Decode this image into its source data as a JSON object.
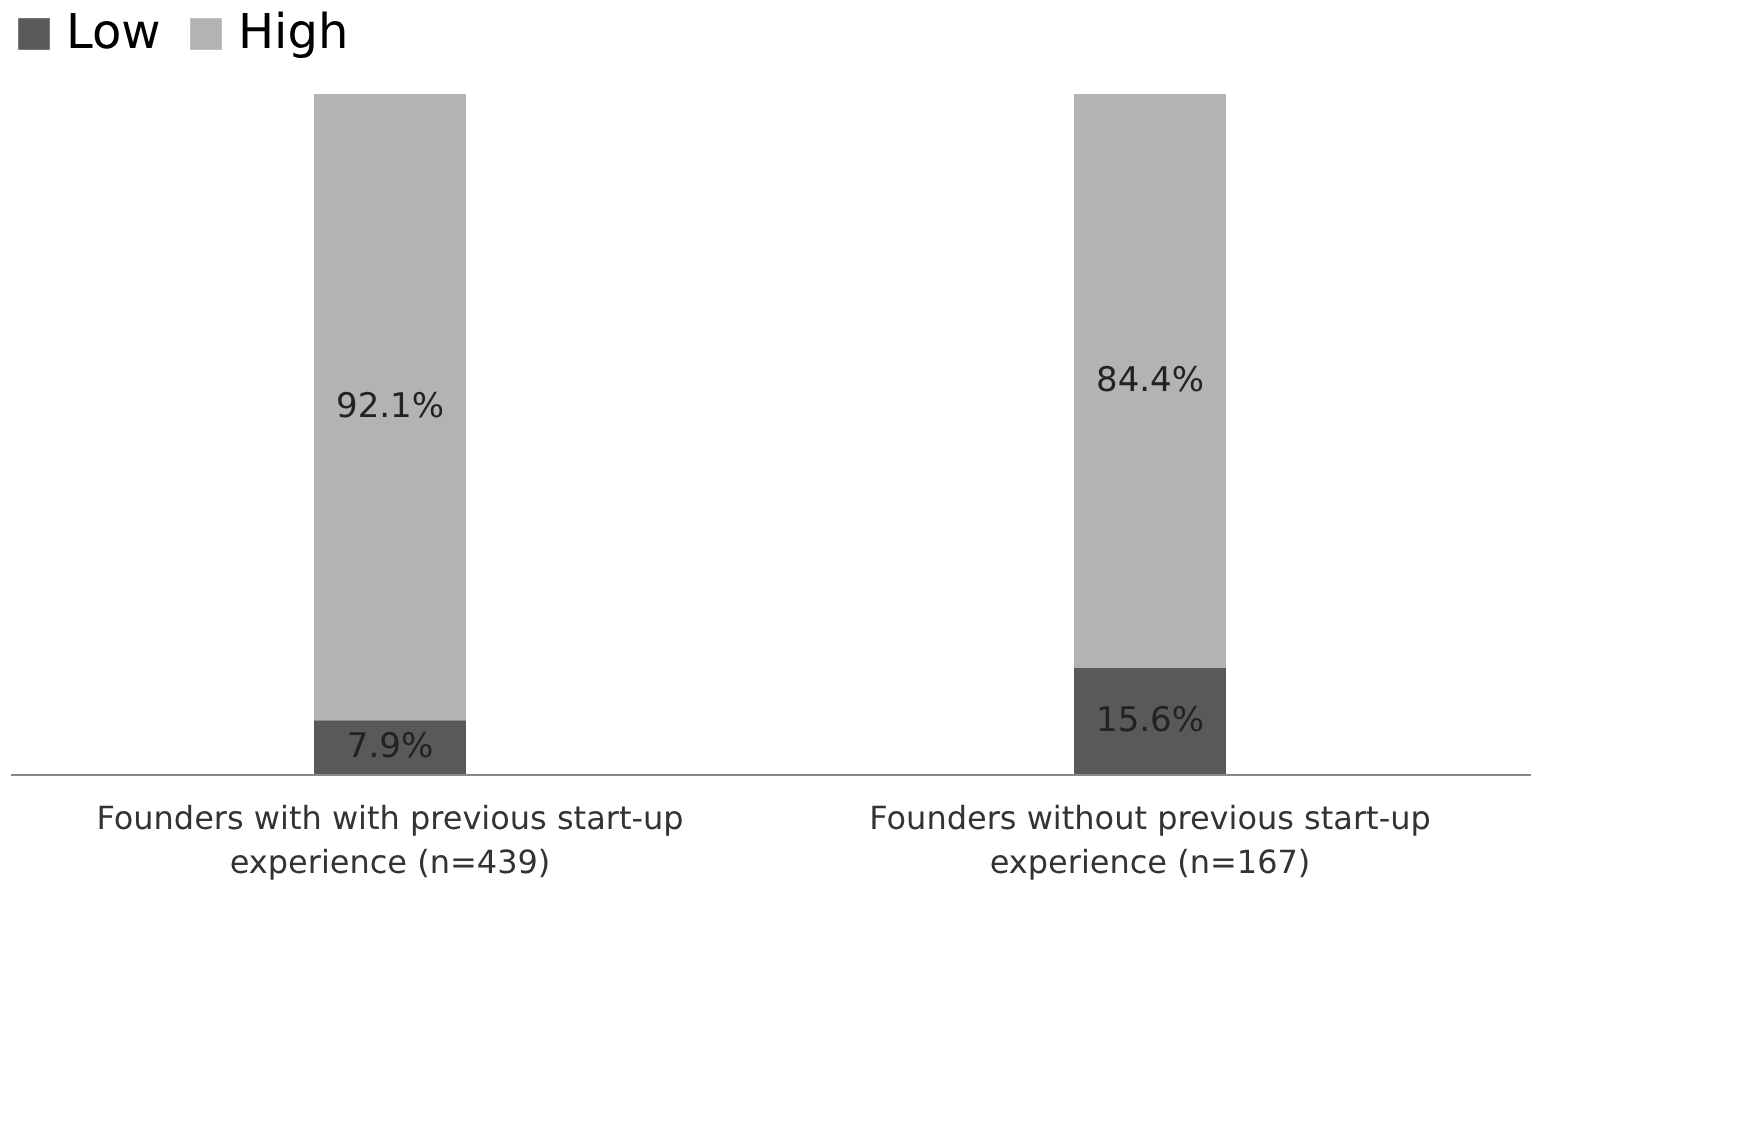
{
  "chart_data": {
    "type": "bar",
    "stacked": true,
    "legend": "top",
    "categories": [
      "Founders with with previous start-up experience (n=439)",
      "Founders without previous start-up experience  (n=167)"
    ],
    "series": [
      {
        "name": "Low",
        "color": "#595959",
        "values": [
          7.9,
          15.6
        ],
        "value_labels": [
          "7.9%",
          "15.6%"
        ]
      },
      {
        "name": "High",
        "color": "#b3b3b3",
        "values": [
          92.1,
          84.4
        ],
        "value_labels": [
          "92.1%",
          "84.4%"
        ]
      }
    ]
  }
}
